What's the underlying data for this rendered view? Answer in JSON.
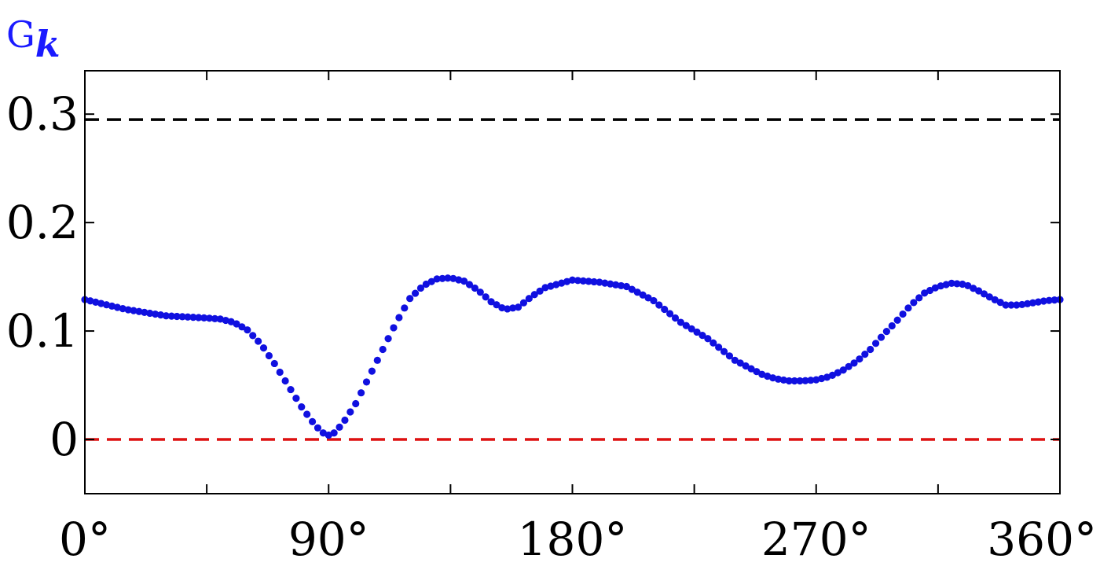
{
  "chart_data": {
    "type": "scatter",
    "ylabel_main": "G",
    "ylabel_sub": "k",
    "xlim": [
      0,
      360
    ],
    "ylim": [
      -0.05,
      0.34
    ],
    "xticks": [
      0,
      45,
      90,
      135,
      180,
      225,
      270,
      315,
      360
    ],
    "xtick_labels": [
      {
        "value": 0,
        "label": "0°"
      },
      {
        "value": 90,
        "label": "90°"
      },
      {
        "value": 180,
        "label": "180°"
      },
      {
        "value": 270,
        "label": "270°"
      },
      {
        "value": 360,
        "label": "360°"
      }
    ],
    "yticks": [
      {
        "value": 0,
        "label": "0"
      },
      {
        "value": 0.1,
        "label": "0.1"
      },
      {
        "value": 0.2,
        "label": "0.2"
      },
      {
        "value": 0.3,
        "label": "0.3"
      }
    ],
    "reference_lines": [
      {
        "y": 0.295,
        "color": "#000000",
        "style": "dashed"
      },
      {
        "y": 0.0,
        "color": "#dd1111",
        "style": "dashed"
      }
    ],
    "series_color": "#1010e0",
    "grid": false,
    "x": [
      0,
      15,
      30,
      45,
      50,
      55,
      60,
      65,
      70,
      75,
      80,
      85,
      88,
      90,
      92,
      95,
      100,
      105,
      110,
      115,
      120,
      125,
      130,
      135,
      140,
      145,
      150,
      155,
      160,
      165,
      170,
      180,
      190,
      200,
      210,
      220,
      230,
      240,
      250,
      255,
      260,
      265,
      270,
      275,
      280,
      285,
      290,
      295,
      300,
      305,
      310,
      315,
      320,
      325,
      330,
      335,
      340,
      345,
      350,
      355,
      360
    ],
    "y": [
      0.129,
      0.12,
      0.114,
      0.112,
      0.111,
      0.108,
      0.101,
      0.088,
      0.07,
      0.05,
      0.03,
      0.013,
      0.006,
      0.004,
      0.006,
      0.014,
      0.033,
      0.058,
      0.083,
      0.108,
      0.13,
      0.142,
      0.148,
      0.149,
      0.146,
      0.138,
      0.127,
      0.12,
      0.122,
      0.132,
      0.14,
      0.147,
      0.145,
      0.141,
      0.128,
      0.108,
      0.093,
      0.073,
      0.06,
      0.056,
      0.054,
      0.054,
      0.055,
      0.058,
      0.064,
      0.072,
      0.083,
      0.097,
      0.11,
      0.124,
      0.135,
      0.141,
      0.144,
      0.143,
      0.137,
      0.13,
      0.124,
      0.124,
      0.126,
      0.128,
      0.129
    ]
  }
}
